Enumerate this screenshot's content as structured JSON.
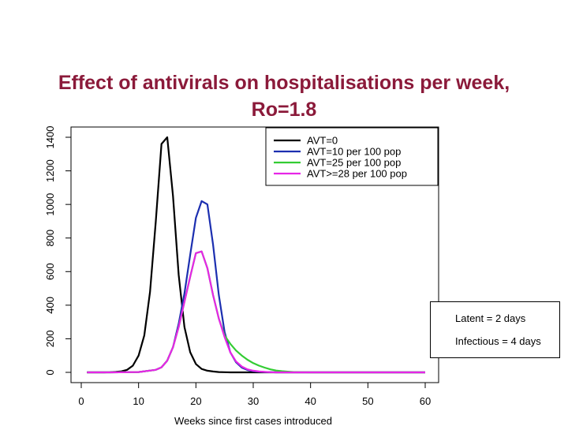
{
  "slide": {
    "title_line1": "Effect of antivirals on hospitalisations per week,",
    "title_line2": "Ro=1.8"
  },
  "chart_data": {
    "type": "line",
    "title": "",
    "xlabel": "Weeks since first cases introduced",
    "ylabel": "",
    "xlim": [
      0,
      60
    ],
    "ylim": [
      0,
      1400
    ],
    "xticks": [
      0,
      10,
      20,
      30,
      40,
      50,
      60
    ],
    "yticks": [
      0,
      200,
      400,
      600,
      800,
      1000,
      1200,
      1400
    ],
    "grid": false,
    "legend_position": "top-right",
    "series": [
      {
        "name": "AVT=0",
        "color": "#000000",
        "x": [
          1,
          2,
          3,
          4,
          5,
          6,
          7,
          8,
          9,
          10,
          11,
          12,
          13,
          14,
          15,
          16,
          17,
          18,
          19,
          20,
          21,
          22,
          23,
          24,
          25,
          26,
          27,
          28,
          29,
          30,
          31,
          32,
          33,
          34,
          35,
          36,
          37,
          38,
          39,
          40,
          45,
          50,
          55,
          60
        ],
        "y": [
          0,
          0,
          0,
          0,
          1,
          3,
          6,
          15,
          40,
          100,
          220,
          480,
          900,
          1360,
          1400,
          1050,
          580,
          270,
          120,
          50,
          20,
          10,
          5,
          2,
          1,
          0,
          0,
          0,
          0,
          0,
          0,
          0,
          0,
          0,
          0,
          0,
          0,
          0,
          0,
          0,
          0,
          0,
          0,
          0
        ]
      },
      {
        "name": "AVT=10 per 100 pop",
        "color": "#1c2fb0",
        "x": [
          1,
          5,
          10,
          13,
          14,
          15,
          16,
          17,
          18,
          19,
          20,
          21,
          22,
          23,
          24,
          25,
          26,
          27,
          28,
          29,
          30,
          31,
          32,
          33,
          34,
          35,
          36,
          37,
          38,
          40,
          45,
          50,
          55,
          60
        ],
        "y": [
          0,
          0,
          2,
          15,
          30,
          70,
          150,
          290,
          470,
          700,
          920,
          1020,
          1000,
          760,
          460,
          240,
          120,
          60,
          28,
          14,
          7,
          4,
          2,
          1,
          0,
          0,
          0,
          0,
          0,
          0,
          0,
          0,
          0,
          0
        ]
      },
      {
        "name": "AVT=25 per 100 pop",
        "color": "#33cc33",
        "x": [
          1,
          5,
          10,
          13,
          14,
          15,
          16,
          17,
          18,
          19,
          20,
          21,
          22,
          23,
          24,
          25,
          26,
          27,
          28,
          29,
          30,
          31,
          32,
          33,
          34,
          35,
          36,
          37,
          38,
          40,
          45,
          50,
          55,
          60
        ],
        "y": [
          0,
          0,
          2,
          15,
          30,
          70,
          150,
          270,
          420,
          570,
          710,
          720,
          620,
          460,
          320,
          220,
          170,
          130,
          100,
          75,
          55,
          40,
          28,
          18,
          11,
          7,
          4,
          2,
          1,
          0,
          0,
          0,
          0,
          0
        ]
      },
      {
        "name": "AVT>=28 per 100 pop",
        "color": "#e626e6",
        "x": [
          1,
          5,
          10,
          13,
          14,
          15,
          16,
          17,
          18,
          19,
          20,
          21,
          22,
          23,
          24,
          25,
          26,
          27,
          28,
          29,
          30,
          31,
          32,
          33,
          34,
          35,
          36,
          37,
          38,
          40,
          45,
          50,
          55,
          60
        ],
        "y": [
          0,
          0,
          2,
          15,
          30,
          70,
          150,
          270,
          420,
          570,
          710,
          720,
          620,
          460,
          320,
          210,
          120,
          65,
          35,
          18,
          10,
          5,
          3,
          1,
          0,
          0,
          0,
          0,
          0,
          0,
          0,
          0,
          0,
          0
        ]
      }
    ]
  },
  "notes": {
    "latent": "Latent = 2 days",
    "infectious": "Infectious = 4 days"
  }
}
